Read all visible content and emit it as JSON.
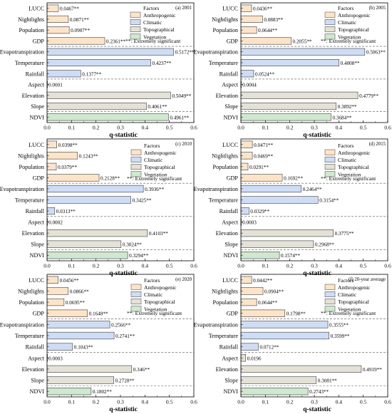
{
  "common": {
    "xlabel": "q-statistic",
    "legend_title": "Factors",
    "note": "**: Extremely significant",
    "factors": [
      "LUCC",
      "Nightlights",
      "Population",
      "GDP",
      "Evapotranspiration",
      "Temperature",
      "Rainfall",
      "Aspect",
      "Elevation",
      "Slope",
      "NDVI"
    ],
    "groups": [
      {
        "name": "Anthropogenic",
        "color": "#fde4c8",
        "factors": [
          "LUCC",
          "Nightlights",
          "Population",
          "GDP"
        ]
      },
      {
        "name": "Climatic",
        "color": "#cfdcf5",
        "factors": [
          "Evapotranspiration",
          "Temperature",
          "Rainfall"
        ]
      },
      {
        "name": "Topographical",
        "color": "#e4e2d6",
        "factors": [
          "Aspect",
          "Elevation",
          "Slope"
        ]
      },
      {
        "name": "Vegetation",
        "color": "#cfe8cf",
        "factors": [
          "NDVI"
        ]
      }
    ]
  },
  "chart_data": [
    {
      "type": "bar",
      "panel": "(a) 2001",
      "xlabel": "q-statistic",
      "xlim": [
        0,
        0.6
      ],
      "xticks": [
        "0.0",
        "0.1",
        "0.2",
        "0.3",
        "0.4",
        "0.5",
        "0.6"
      ],
      "categories": [
        "LUCC",
        "Nightlights",
        "Population",
        "GDP",
        "Evapotranspiration",
        "Temperature",
        "Rainfall",
        "Aspect",
        "Elevation",
        "Slope",
        "NDVI"
      ],
      "values": [
        0.0467,
        0.0871,
        0.0907,
        0.2361,
        0.5172,
        0.4237,
        0.1377,
        0.0001,
        0.5049,
        0.4061,
        0.4961
      ],
      "labels": [
        "0.0467**",
        "0.0871**",
        "0.0907**",
        "0.2361**",
        "0.5172**",
        "0.4237**",
        "0.1377**",
        "0.0001",
        "0.5049**",
        "0.4061**",
        "0.4961**"
      ]
    },
    {
      "type": "bar",
      "panel": "(b) 2005",
      "xlabel": "q-statistic",
      "xlim": [
        0,
        0.6
      ],
      "xticks": [
        "0.0",
        "0.1",
        "0.2",
        "0.3",
        "0.4",
        "0.5",
        "0.6"
      ],
      "categories": [
        "LUCC",
        "Nightlights",
        "Population",
        "GDP",
        "Evapotranspiration",
        "Temperature",
        "Rainfall",
        "Aspect",
        "Elevation",
        "Slope",
        "NDVI"
      ],
      "values": [
        0.0436,
        0.0883,
        0.0644,
        0.2055,
        0.5063,
        0.4008,
        0.0524,
        0.0004,
        0.4779,
        0.3892,
        0.3684
      ],
      "labels": [
        "0.0436**",
        "0.0883**",
        "0.0644**",
        "0.2055**",
        "0.5063**",
        "0.4008**",
        "0.0524**",
        "0.0004",
        "0.4779**",
        "0.3892**",
        "0.3684**"
      ]
    },
    {
      "type": "bar",
      "panel": "(c) 2010",
      "xlabel": "q-statistic",
      "xlim": [
        0,
        0.6
      ],
      "xticks": [
        "0.0",
        "0.1",
        "0.2",
        "0.3",
        "0.4",
        "0.5",
        "0.6"
      ],
      "categories": [
        "LUCC",
        "Nightlights",
        "Population",
        "GDP",
        "Evapotranspiration",
        "Temperature",
        "Rainfall",
        "Aspect",
        "Elevation",
        "Slope",
        "NDVI"
      ],
      "values": [
        0.0398,
        0.1243,
        0.0379,
        0.2128,
        0.3936,
        0.3425,
        0.0313,
        0.0002,
        0.4103,
        0.3024,
        0.3294
      ],
      "labels": [
        "0.0398**",
        "0.1243**",
        "0.0379**",
        "0.2128**",
        "0.3936**",
        "0.3425**",
        "0.0313**",
        "0.0002",
        "0.4103**",
        "0.3024**",
        "0.3294**"
      ]
    },
    {
      "type": "bar",
      "panel": "(d) 2015",
      "xlabel": "q-statistic",
      "xlim": [
        0,
        0.6
      ],
      "xticks": [
        "0.0",
        "0.1",
        "0.2",
        "0.3",
        "0.4",
        "0.5",
        "0.6"
      ],
      "categories": [
        "LUCC",
        "Nightlights",
        "Population",
        "GDP",
        "Evapotranspiration",
        "Temperature",
        "Rainfall",
        "Aspect",
        "Elevation",
        "Slope",
        "NDVI"
      ],
      "values": [
        0.0471,
        0.0469,
        0.0291,
        0.1692,
        0.2464,
        0.3154,
        0.0329,
        0.0003,
        0.3775,
        0.2968,
        0.1574
      ],
      "labels": [
        "0.0471**",
        "0.0469**",
        "0.0291**",
        "0.1692**",
        "0.2464**",
        "0.3154**",
        "0.0329**",
        "0.0003",
        "0.3775**",
        "0.2968**",
        "0.1574**"
      ]
    },
    {
      "type": "bar",
      "panel": "(e) 2020",
      "xlabel": "q-statistic",
      "xlim": [
        0,
        0.6
      ],
      "xticks": [
        "0.0",
        "0.1",
        "0.2",
        "0.3",
        "0.4",
        "0.5",
        "0.6"
      ],
      "categories": [
        "LUCC",
        "Nightlights",
        "Population",
        "GDP",
        "Evapotranspiration",
        "Temperature",
        "Rainfall",
        "Aspect",
        "Elevation",
        "Slope",
        "NDVI"
      ],
      "values": [
        0.0456,
        0.0866,
        0.0695,
        0.1648,
        0.2566,
        0.2741,
        0.1043,
        0.0003,
        0.346,
        0.2728,
        0.1802
      ],
      "labels": [
        "0.0456**",
        "0.0866**",
        "0.0695**",
        "0.1648**",
        "0.2566**",
        "0.2741**",
        "0.1043**",
        "0.0003",
        "0.346**",
        "0.2728**",
        "0.1802**"
      ]
    },
    {
      "type": "bar",
      "panel": "(f) 20-year average",
      "xlabel": "q-statistic",
      "xlim": [
        0,
        0.6
      ],
      "xticks": [
        "0.0",
        "0.1",
        "0.2",
        "0.3",
        "0.4",
        "0.5",
        "0.6"
      ],
      "categories": [
        "LUCC",
        "Nightlights",
        "Population",
        "GDP",
        "Evapotranspiration",
        "Temperature",
        "Rainfall",
        "Aspect",
        "Elevation",
        "Slope",
        "NDVI"
      ],
      "values": [
        0.0442,
        0.0904,
        0.0644,
        0.1798,
        0.3555,
        0.3599,
        0.0712,
        0.0196,
        0.4919,
        0.3081,
        0.2743
      ],
      "labels": [
        "0.0442**",
        "0.0904**",
        "0.0644**",
        "0.1798**",
        "0.3555**",
        "0.3599**",
        "0.0712**",
        "0.0196",
        "0.4919**",
        "0.3081**",
        "0.2743**"
      ]
    }
  ]
}
